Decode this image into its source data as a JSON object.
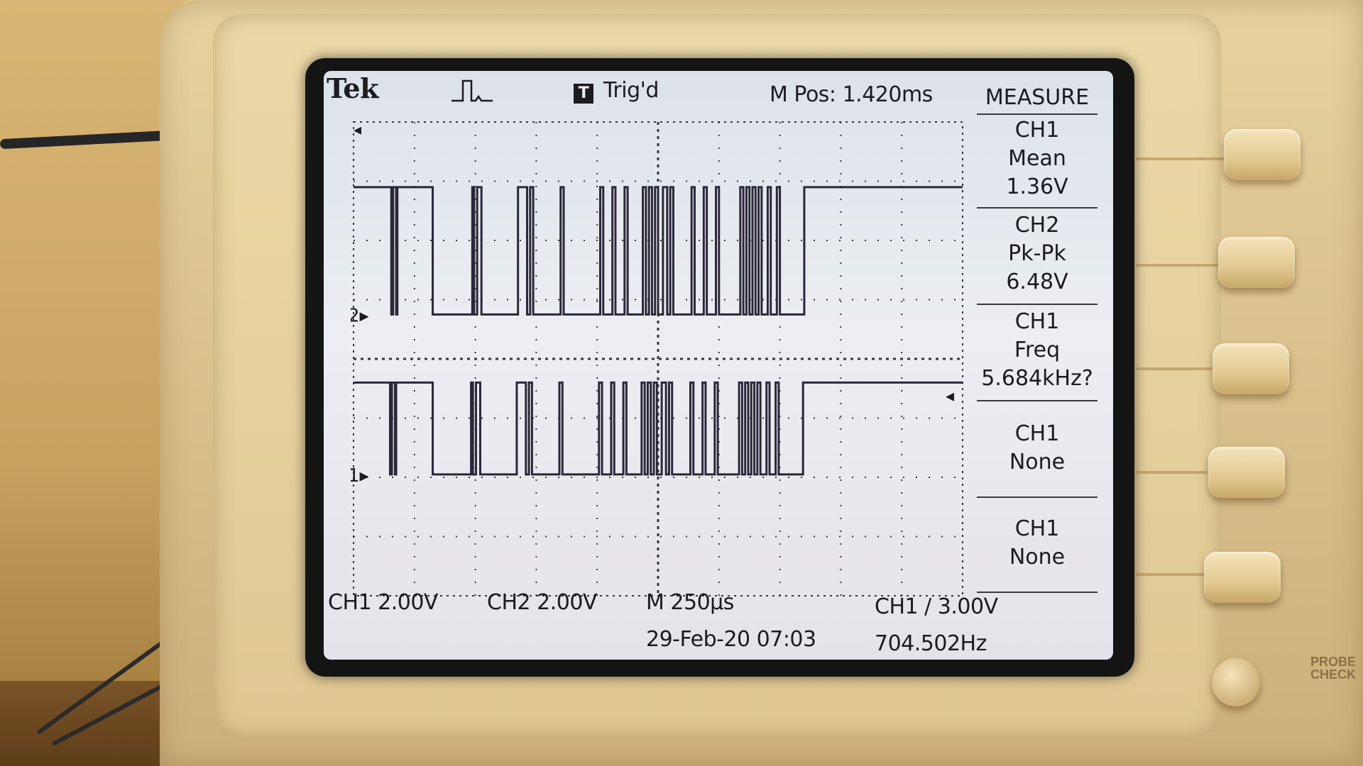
{
  "header": {
    "brand": "Tek",
    "trigger_badge": "T",
    "trigger_status": "Trig'd",
    "main_position": "M Pos: 1.420ms"
  },
  "measure_menu": {
    "title": "MEASURE",
    "items": [
      {
        "source": "CH1",
        "type": "Mean",
        "value": "1.36V"
      },
      {
        "source": "CH2",
        "type": "Pk-Pk",
        "value": "6.48V"
      },
      {
        "source": "CH1",
        "type": "Freq",
        "value": "5.684kHz?"
      },
      {
        "source": "CH1",
        "type": "None",
        "value": ""
      },
      {
        "source": "CH1",
        "type": "None",
        "value": ""
      }
    ]
  },
  "status_bar": {
    "ch1_scale": "CH1  2.00V",
    "ch2_scale": "CH2  2.00V",
    "timebase": "M 250µs",
    "trigger": "CH1 ∕ 3.00V",
    "date_time": "29-Feb-20 07:03",
    "trigger_freq": "704.502Hz"
  },
  "channel_markers": {
    "ch2": "2",
    "ch1": "1"
  },
  "panel": {
    "probe_check": "PROBE CHECK"
  },
  "colors": {
    "trace": "#2a2838",
    "grid": "#34343c",
    "screen": "#e8ebf0"
  },
  "chart_data": {
    "type": "line",
    "title": "",
    "xlabel": "",
    "ylabel": "",
    "x_divisions": 10,
    "y_divisions": 8,
    "time_per_div_us": 250,
    "volts_per_div": 2.0,
    "series": [
      {
        "name": "CH2",
        "levels": [
          1,
          0
        ],
        "transitions_div": [
          0.0,
          0.62,
          0.65,
          0.7,
          0.72,
          1.3,
          1.95,
          1.98,
          2.03,
          2.1,
          2.7,
          2.85,
          2.9,
          2.95,
          3.4,
          3.45,
          4.05,
          4.1,
          4.25,
          4.3,
          4.45,
          4.5,
          4.75,
          4.8,
          4.85,
          4.9,
          4.95,
          5.0,
          5.08,
          5.15,
          5.2,
          5.25,
          5.55,
          5.6,
          5.75,
          5.8,
          5.95,
          6.0,
          6.35,
          6.4,
          6.45,
          6.5,
          6.55,
          6.6,
          6.65,
          6.7,
          6.8,
          6.85,
          6.95,
          7.0,
          7.4,
          10.0
        ]
      },
      {
        "name": "CH1",
        "levels": [
          1,
          0
        ],
        "transitions_div": [
          0.0,
          0.6,
          0.63,
          0.68,
          0.7,
          1.3,
          1.93,
          1.96,
          2.01,
          2.08,
          2.68,
          2.83,
          2.88,
          2.93,
          3.38,
          3.43,
          4.03,
          4.08,
          4.23,
          4.28,
          4.43,
          4.48,
          4.73,
          4.78,
          4.83,
          4.88,
          4.93,
          4.98,
          5.06,
          5.13,
          5.18,
          5.23,
          5.53,
          5.58,
          5.73,
          5.78,
          5.93,
          5.98,
          6.33,
          6.38,
          6.43,
          6.48,
          6.53,
          6.58,
          6.63,
          6.68,
          6.78,
          6.83,
          6.93,
          6.98,
          7.38,
          10.0
        ]
      }
    ]
  }
}
